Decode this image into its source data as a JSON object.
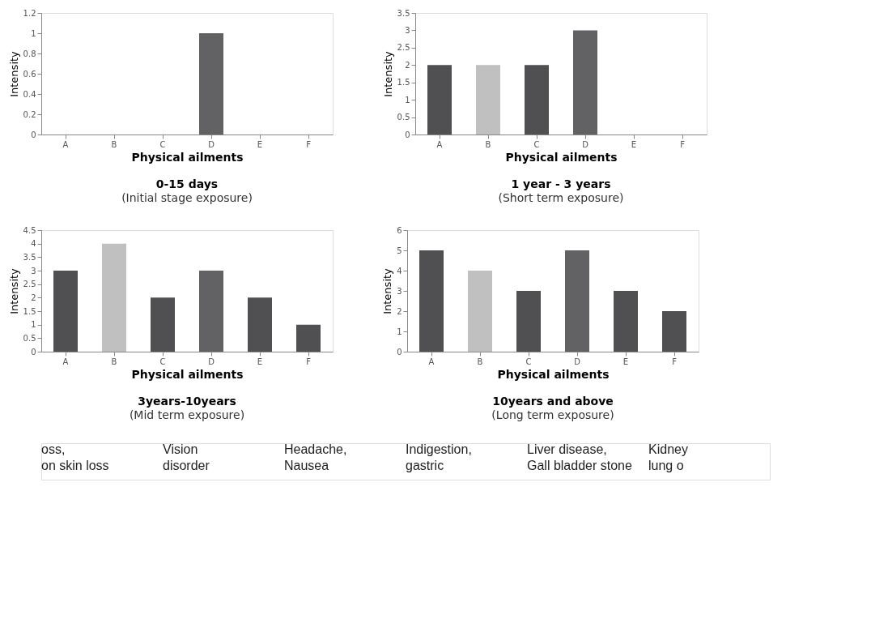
{
  "chart_data": [
    {
      "type": "bar",
      "title": "0-15 days",
      "subtitle": "(Initial stage exposure)",
      "xlabel": "Physical ailments",
      "ylabel": "Intensity",
      "categories": [
        "A",
        "B",
        "C",
        "D",
        "E",
        "F"
      ],
      "values": [
        0,
        0,
        0,
        1,
        0,
        0
      ],
      "colors": [
        "#505052",
        "#c0c0c0",
        "#505052",
        "#626264",
        "#505052",
        "#505052"
      ],
      "ylim": [
        0,
        1.2
      ],
      "yticks": [
        0,
        0.2,
        0.4,
        0.6,
        0.8,
        1,
        1.2
      ],
      "grid": false
    },
    {
      "type": "bar",
      "title": "1 year - 3 years",
      "subtitle": "(Short term exposure)",
      "xlabel": "Physical ailments",
      "ylabel": "Intensity",
      "categories": [
        "A",
        "B",
        "C",
        "D",
        "E",
        "F"
      ],
      "values": [
        2,
        2,
        2,
        3,
        0,
        0
      ],
      "colors": [
        "#505052",
        "#c0c0c0",
        "#505052",
        "#626264",
        "#505052",
        "#505052"
      ],
      "ylim": [
        0,
        3.5
      ],
      "yticks": [
        0,
        0.5,
        1,
        1.5,
        2,
        2.5,
        3,
        3.5
      ],
      "grid": false
    },
    {
      "type": "bar",
      "title": "3years-10years",
      "subtitle": "(Mid term exposure)",
      "xlabel": "Physical ailments",
      "ylabel": "Intensity",
      "categories": [
        "A",
        "B",
        "C",
        "D",
        "E",
        "F"
      ],
      "values": [
        3,
        4,
        2,
        3,
        2,
        1
      ],
      "colors": [
        "#505052",
        "#c0c0c0",
        "#505052",
        "#626264",
        "#505052",
        "#505052"
      ],
      "ylim": [
        0,
        4.5
      ],
      "yticks": [
        0,
        0.5,
        1,
        1.5,
        2,
        2.5,
        3,
        3.5,
        4,
        4.5
      ],
      "grid": false
    },
    {
      "type": "bar",
      "title": "10years and above",
      "subtitle": "(Long term exposure)",
      "xlabel": "Physical ailments",
      "ylabel": "Intensity",
      "categories": [
        "A",
        "B",
        "C",
        "D",
        "E",
        "F"
      ],
      "values": [
        5,
        4,
        3,
        5,
        3,
        2
      ],
      "colors": [
        "#505052",
        "#c0c0c0",
        "#505052",
        "#626264",
        "#505052",
        "#505052"
      ],
      "ylim": [
        0,
        6
      ],
      "yticks": [
        0,
        1,
        2,
        3,
        4,
        5,
        6
      ],
      "grid": false
    },
    {
      "type": "other",
      "annotations": [
        "oss,\non skin loss",
        "Vision\ndisorder",
        "Headache,\nNausea",
        "Indigestion,\ngastric",
        "Liver disease,\nGall bladder stone",
        "Kidney\nlung o"
      ]
    }
  ]
}
